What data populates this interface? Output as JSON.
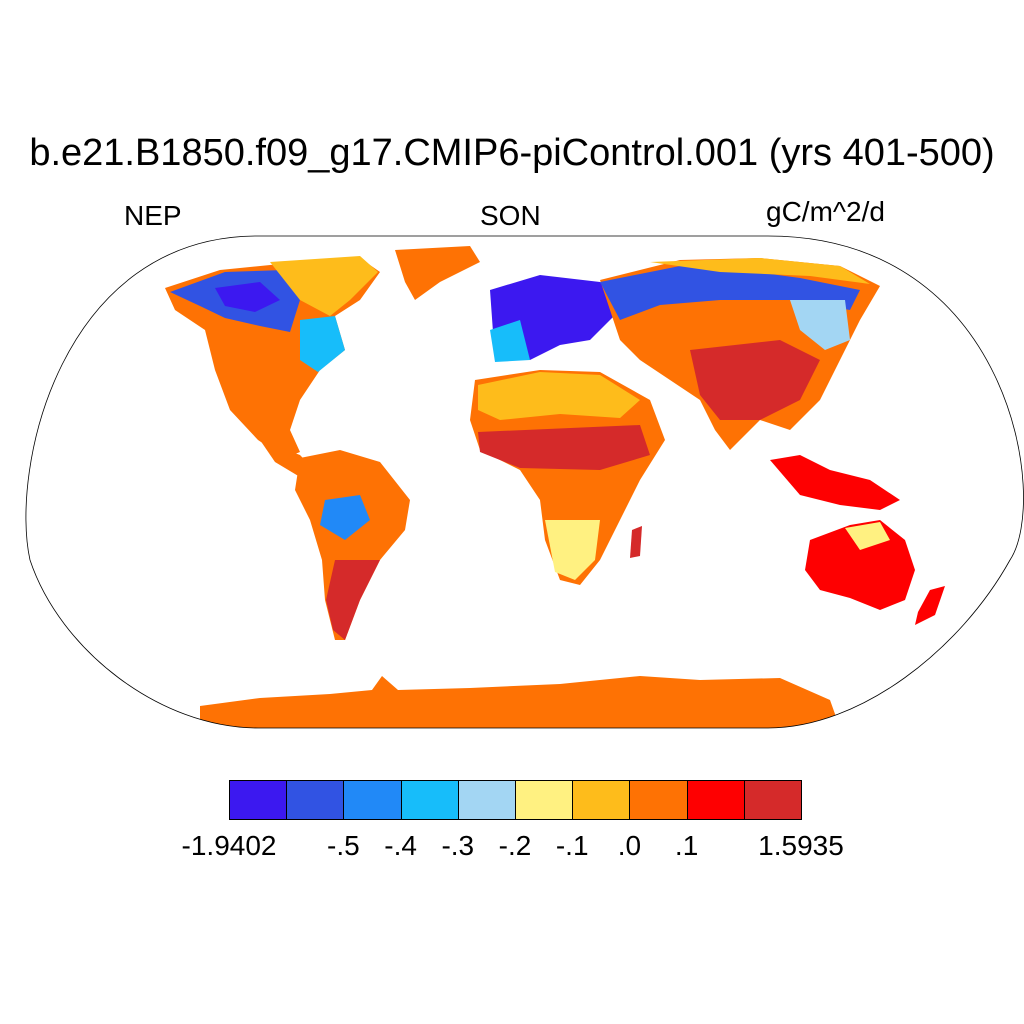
{
  "title": "b.e21.B1850.f09_g17.CMIP6-piControl.001 (yrs 401-500)",
  "left_label": "NEP",
  "center_label": "SON",
  "right_label": "gC/m^2/d",
  "colorbar": {
    "colors": [
      "#3c18f0",
      "#3153e3",
      "#2189f7",
      "#17bdfa",
      "#a3d6f3",
      "#fff181",
      "#febc1b",
      "#fe7204",
      "#fe0001",
      "#d52a2a"
    ],
    "labels": [
      "-1.9402",
      "-.5",
      "-.4",
      "-.3",
      "-.2",
      "-.1",
      ".0",
      ".1",
      "1.5935"
    ]
  }
}
